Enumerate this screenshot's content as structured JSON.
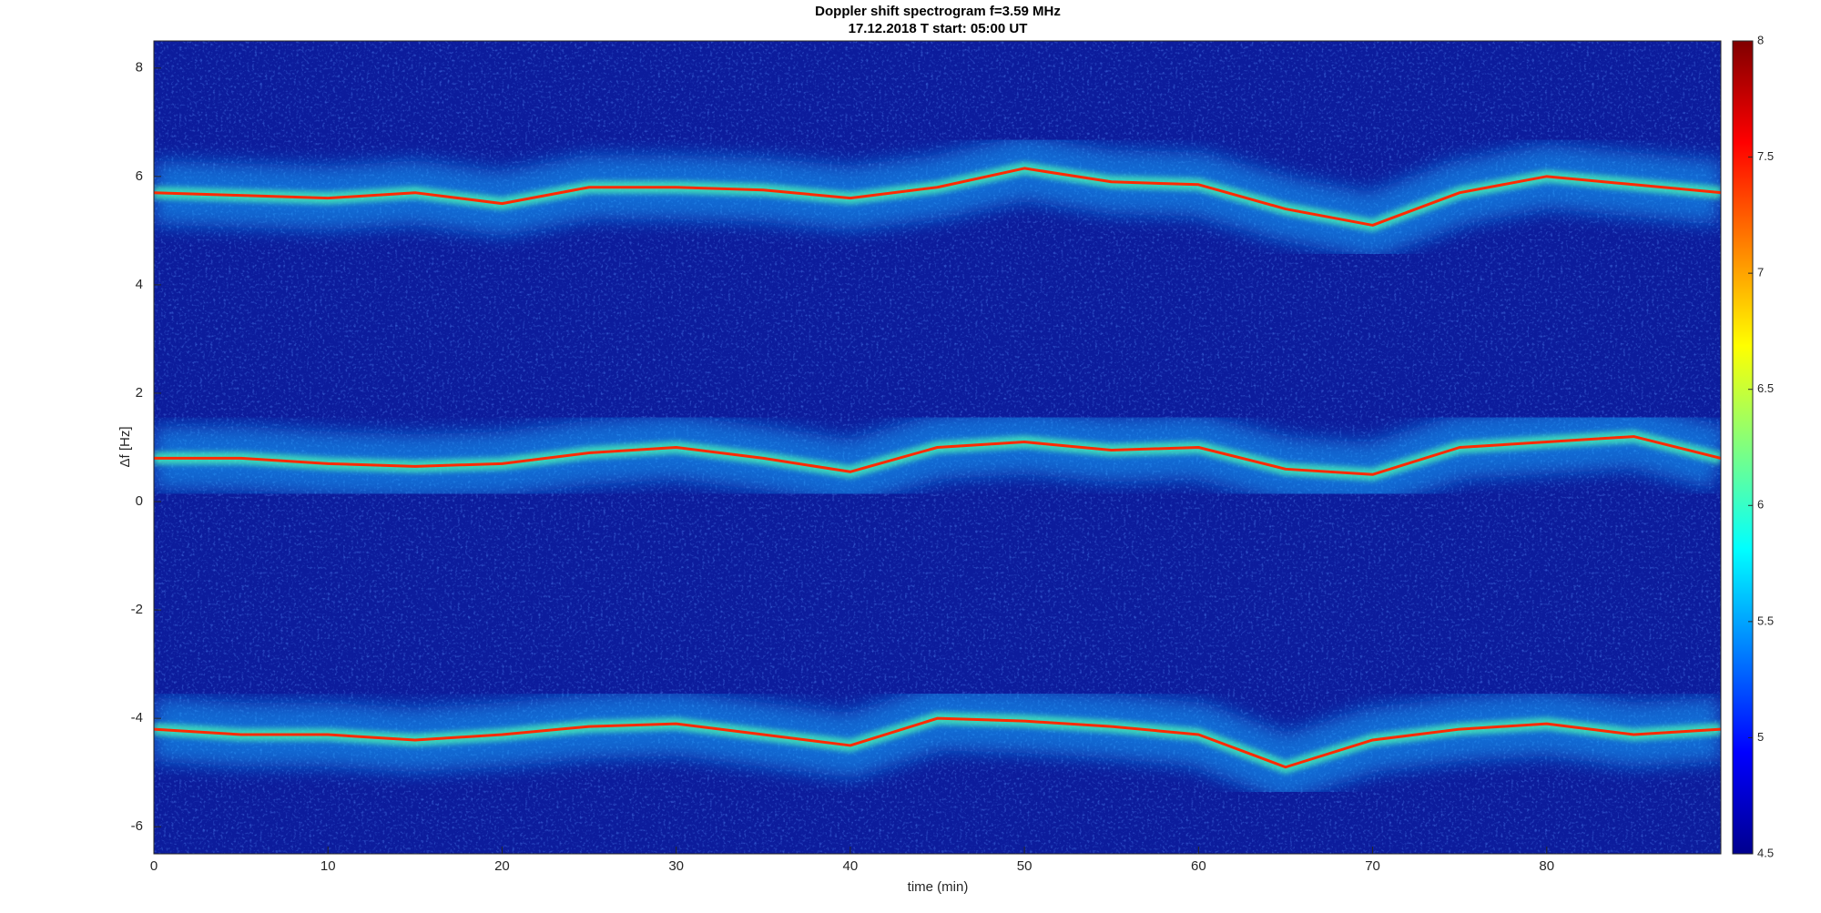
{
  "chart_data": {
    "type": "spectrogram",
    "title": "Doppler shift spectrogram f=3.59 MHz",
    "subtitle": "17.12.2018   T start: 05:00 UT",
    "xlabel": "time (min)",
    "ylabel": "Δf [Hz]",
    "x": [
      0,
      5,
      10,
      15,
      20,
      25,
      30,
      35,
      40,
      45,
      50,
      55,
      60,
      65,
      70,
      75,
      80,
      85,
      90
    ],
    "series": [
      {
        "color": "#ff2a00",
        "values": [
          5.7,
          5.65,
          5.6,
          5.7,
          5.5,
          5.8,
          5.8,
          5.75,
          5.6,
          5.8,
          6.15,
          5.9,
          5.85,
          5.4,
          5.1,
          5.7,
          6.0,
          5.85,
          5.7
        ]
      },
      {
        "color": "#ff2a00",
        "values": [
          0.8,
          0.8,
          0.7,
          0.65,
          0.7,
          0.9,
          1.0,
          0.8,
          0.55,
          1.0,
          1.1,
          0.95,
          1.0,
          0.6,
          0.5,
          1.0,
          1.1,
          1.2,
          0.8
        ]
      },
      {
        "color": "#ff2a00",
        "values": [
          -4.2,
          -4.3,
          -4.3,
          -4.4,
          -4.3,
          -4.15,
          -4.1,
          -4.3,
          -4.5,
          -4.0,
          -4.05,
          -4.15,
          -4.3,
          -4.9,
          -4.4,
          -4.2,
          -4.1,
          -4.3,
          -4.2
        ]
      }
    ],
    "xlim": [
      0,
      90
    ],
    "xticks": [
      0,
      10,
      20,
      30,
      40,
      50,
      60,
      70,
      80
    ],
    "ylim": [
      -6.5,
      8.5
    ],
    "yticks": [
      -6,
      -4,
      -2,
      0,
      2,
      4,
      6,
      8
    ],
    "colormap": "jet",
    "clim": [
      4.5,
      8
    ],
    "cticks": [
      4.5,
      5,
      5.5,
      6,
      6.5,
      7,
      7.5,
      8
    ],
    "background_color": "#0c1c9c"
  }
}
